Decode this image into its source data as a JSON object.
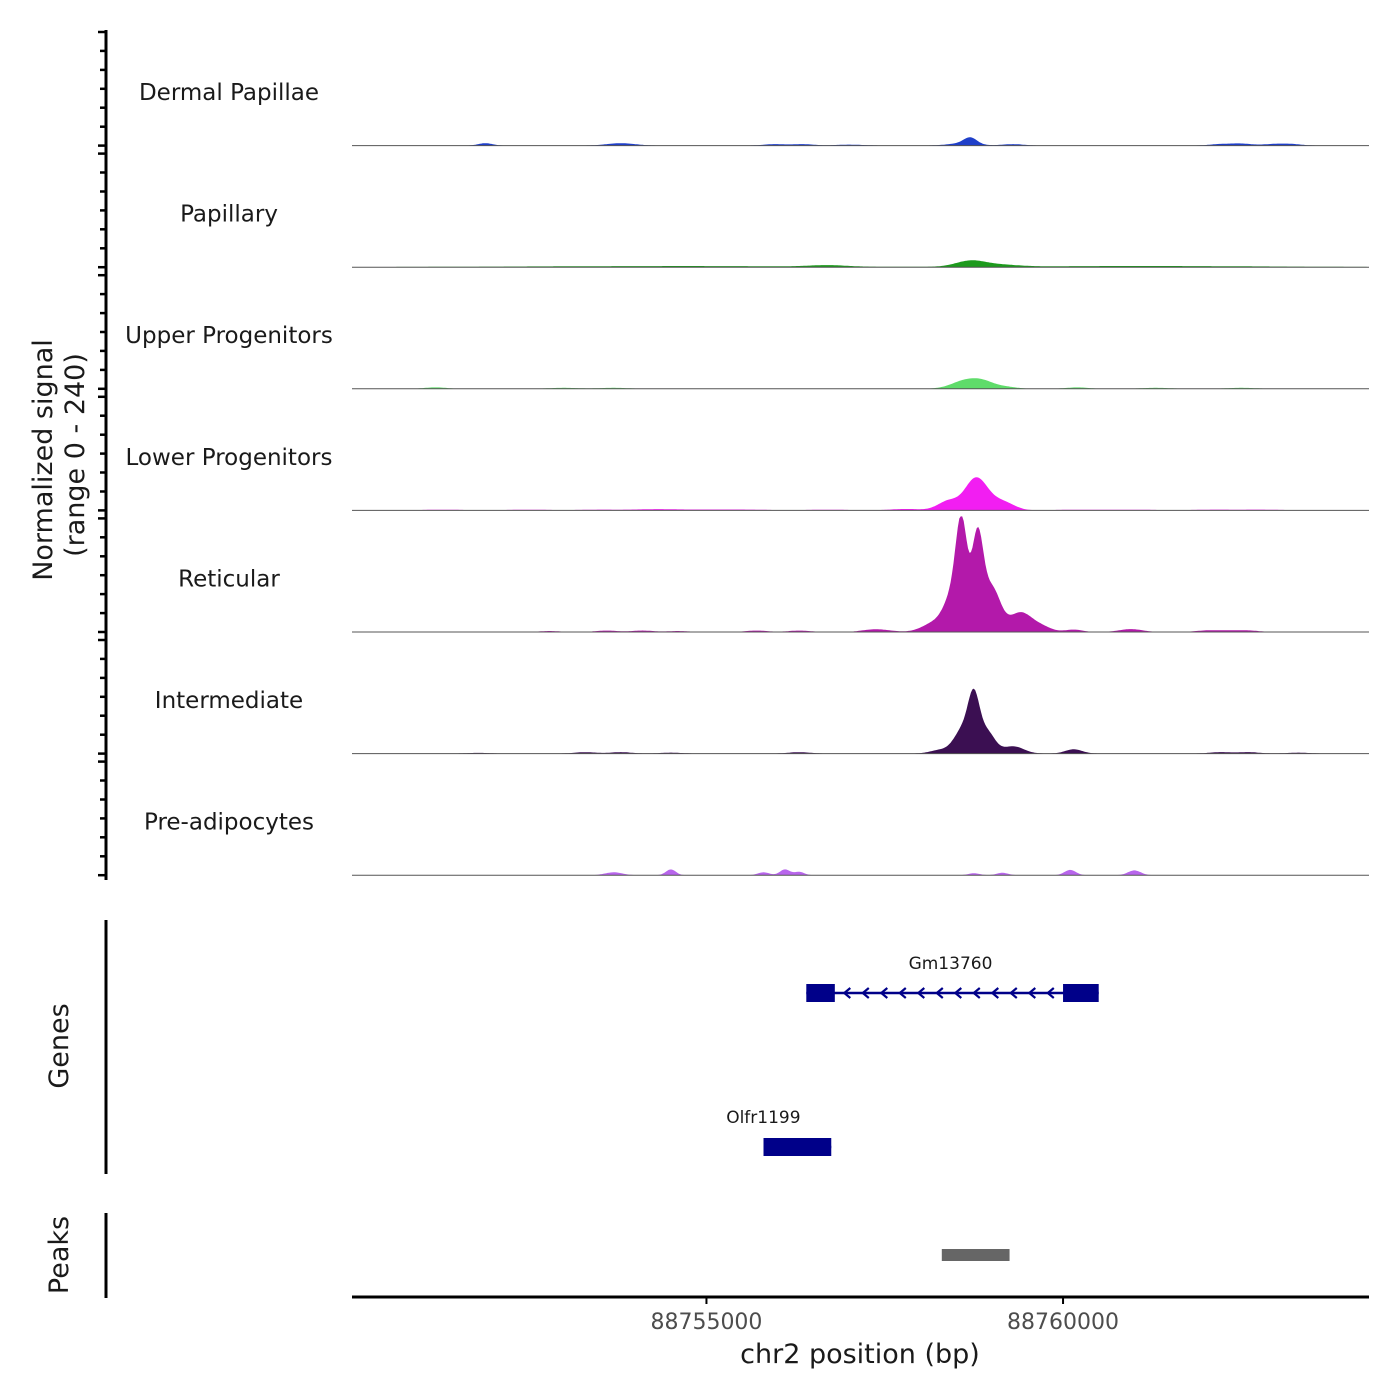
{
  "chart_data": {
    "type": "area",
    "title": "",
    "chromosome": "chr2",
    "xlabel": "chr2 position (bp)",
    "ylabel_line1": "Normalized signal",
    "ylabel_line2": "(range 0 - 240)",
    "ylim": [
      0,
      240
    ],
    "xlim": [
      88750030,
      88764290
    ],
    "x_ticks": [
      88755000,
      88760000
    ],
    "x_tick_labels": [
      "88755000",
      "88760000"
    ],
    "tracks": [
      {
        "name": "Dermal Papillae",
        "color": "#1f3fc9",
        "peaks": [
          [
            88751900,
            5,
            100
          ],
          [
            88753800,
            5,
            200
          ],
          [
            88755950,
            3,
            150
          ],
          [
            88756350,
            3,
            150
          ],
          [
            88757000,
            2,
            200
          ],
          [
            88758700,
            13,
            90
          ],
          [
            88758600,
            5,
            200
          ],
          [
            88759300,
            3,
            150
          ],
          [
            88762200,
            3,
            150
          ],
          [
            88762500,
            4,
            150
          ],
          [
            88762950,
            3,
            150
          ],
          [
            88763200,
            3,
            150
          ]
        ]
      },
      {
        "name": "Papillary",
        "color": "#1d9a1d",
        "peaks": [
          [
            88753300,
            1.5,
            1800
          ],
          [
            88755500,
            1.5,
            1500
          ],
          [
            88756700,
            3,
            250
          ],
          [
            88758700,
            12,
            200
          ],
          [
            88759100,
            4,
            250
          ],
          [
            88760200,
            1.5,
            1500
          ],
          [
            88762000,
            1.5,
            1500
          ]
        ]
      },
      {
        "name": "Upper Progenitors",
        "color": "#5fdc6a",
        "peaks": [
          [
            88751200,
            3,
            150
          ],
          [
            88753000,
            2,
            200
          ],
          [
            88753700,
            2,
            200
          ],
          [
            88758650,
            18,
            200
          ],
          [
            88758900,
            10,
            150
          ],
          [
            88759200,
            4,
            150
          ],
          [
            88760200,
            3,
            150
          ],
          [
            88761300,
            2,
            200
          ],
          [
            88762500,
            2,
            200
          ]
        ]
      },
      {
        "name": "Lower Progenitors",
        "color": "#f21ef2",
        "peaks": [
          [
            88751300,
            1.5,
            300
          ],
          [
            88752500,
            1.5,
            300
          ],
          [
            88753500,
            1.5,
            300
          ],
          [
            88754300,
            2.5,
            300
          ],
          [
            88755000,
            1.5,
            300
          ],
          [
            88755600,
            1.5,
            300
          ],
          [
            88756700,
            1.5,
            300
          ],
          [
            88757800,
            3,
            220
          ],
          [
            88758750,
            55,
            140
          ],
          [
            88758400,
            20,
            150
          ],
          [
            88759150,
            18,
            160
          ],
          [
            88758900,
            20,
            130
          ],
          [
            88760200,
            1.5,
            300
          ],
          [
            88761000,
            1.5,
            300
          ],
          [
            88762100,
            1.5,
            300
          ],
          [
            88762800,
            1.5,
            300
          ]
        ]
      },
      {
        "name": "Reticular",
        "color": "#b319aa",
        "peaks": [
          [
            88752800,
            2,
            150
          ],
          [
            88753600,
            3,
            150
          ],
          [
            88754100,
            3,
            150
          ],
          [
            88754600,
            2,
            150
          ],
          [
            88755700,
            3,
            150
          ],
          [
            88756300,
            3,
            150
          ],
          [
            88757300,
            4,
            150
          ],
          [
            88757500,
            3,
            150
          ],
          [
            88758000,
            2,
            150
          ],
          [
            88758580,
            200,
            80
          ],
          [
            88758800,
            190,
            80
          ],
          [
            88758450,
            70,
            120
          ],
          [
            88759000,
            90,
            120
          ],
          [
            88759400,
            40,
            160
          ],
          [
            88758200,
            18,
            150
          ],
          [
            88759700,
            10,
            140
          ],
          [
            88760150,
            5,
            120
          ],
          [
            88760950,
            6,
            160
          ],
          [
            88762000,
            3,
            150
          ],
          [
            88762300,
            3,
            150
          ],
          [
            88762600,
            3,
            150
          ]
        ]
      },
      {
        "name": "Intermediate",
        "color": "#3b0f52",
        "peaks": [
          [
            88751800,
            1.5,
            150
          ],
          [
            88753300,
            3,
            150
          ],
          [
            88753800,
            3,
            150
          ],
          [
            88754500,
            2,
            150
          ],
          [
            88756300,
            3,
            150
          ],
          [
            88758750,
            100,
            80
          ],
          [
            88758600,
            50,
            120
          ],
          [
            88758930,
            45,
            110
          ],
          [
            88759300,
            15,
            150
          ],
          [
            88758300,
            8,
            150
          ],
          [
            88760150,
            9,
            120
          ],
          [
            88762200,
            3,
            150
          ],
          [
            88762600,
            3,
            150
          ],
          [
            88763300,
            2,
            150
          ]
        ]
      },
      {
        "name": "Pre-adipocytes",
        "color": "#b865ec",
        "peaks": [
          [
            88753700,
            6,
            120
          ],
          [
            88754500,
            12,
            70
          ],
          [
            88755800,
            6,
            80
          ],
          [
            88756100,
            12,
            70
          ],
          [
            88756300,
            7,
            70
          ],
          [
            88758750,
            4,
            80
          ],
          [
            88759150,
            5,
            80
          ],
          [
            88760100,
            11,
            80
          ],
          [
            88761000,
            10,
            90
          ]
        ]
      }
    ],
    "genes_label": "Genes",
    "genes": [
      {
        "name": "Gm13760",
        "start": 88756400,
        "end": 88760500,
        "strand": "-",
        "exons": [
          [
            88756400,
            88756800
          ],
          [
            88760000,
            88760500
          ]
        ],
        "color": "#000089"
      },
      {
        "name": "Olfr1199",
        "start": 88755800,
        "end": 88756750,
        "strand": "",
        "exons": [
          [
            88755800,
            88756750
          ]
        ],
        "color": "#000089"
      }
    ],
    "peaks_label": "Peaks",
    "peak_regions": [
      {
        "start": 88758300,
        "end": 88759250,
        "color": "#666666"
      }
    ]
  }
}
